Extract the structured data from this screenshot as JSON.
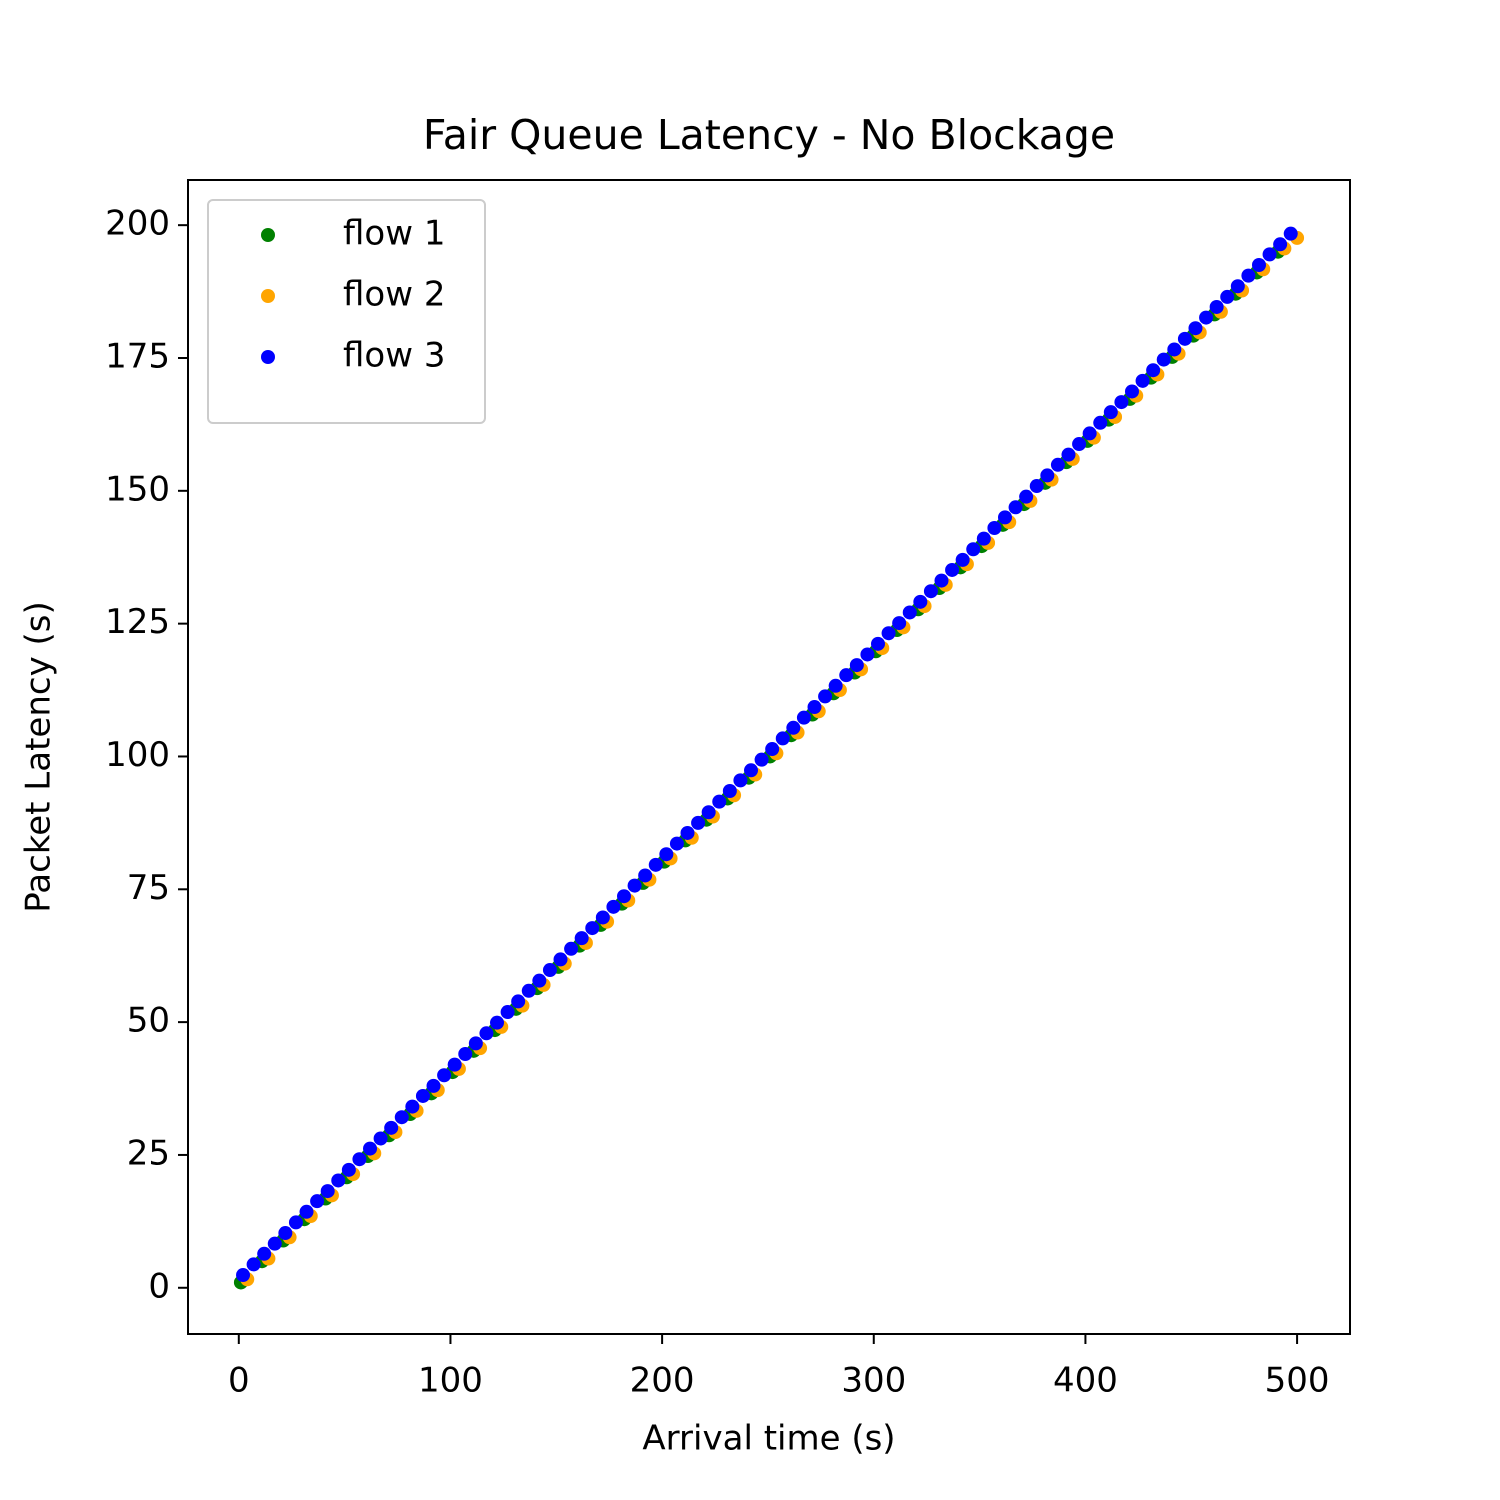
{
  "chart_data": {
    "type": "scatter",
    "title": "Fair Queue Latency - No Blockage",
    "xlabel": "Arrival time (s)",
    "ylabel": "Packet Latency (s)",
    "xlim": [
      -24,
      525
    ],
    "ylim": [
      -8.7,
      208.5
    ],
    "xticks": [
      0,
      100,
      200,
      300,
      400,
      500
    ],
    "yticks": [
      0,
      25,
      50,
      75,
      100,
      125,
      150,
      175,
      200
    ],
    "legend": "upper left",
    "series": [
      {
        "name": "flow 1",
        "color": "green",
        "x": [
          1,
          11,
          21,
          31,
          41,
          51,
          61,
          71,
          81,
          91,
          101,
          111,
          121,
          131,
          141,
          151,
          161,
          171,
          181,
          191,
          201,
          211,
          221,
          231,
          241,
          251,
          261,
          271,
          281,
          291,
          301,
          311,
          321,
          331,
          341,
          351,
          361,
          371,
          381,
          391,
          401,
          411,
          421,
          431,
          441,
          451,
          461,
          471,
          481,
          491
        ],
        "values": [
          1.0,
          5.0,
          8.9,
          12.9,
          16.8,
          20.8,
          24.8,
          28.7,
          32.7,
          36.6,
          40.6,
          44.6,
          48.5,
          52.5,
          56.4,
          60.4,
          64.4,
          68.3,
          72.3,
          76.2,
          80.2,
          84.2,
          88.1,
          92.1,
          96.0,
          100.0,
          104.0,
          107.9,
          111.9,
          115.8,
          119.8,
          123.8,
          127.7,
          131.7,
          135.6,
          139.6,
          143.6,
          147.5,
          151.5,
          155.4,
          159.4,
          163.4,
          167.3,
          171.3,
          175.2,
          179.2,
          183.2,
          187.1,
          191.1,
          195.0
        ]
      },
      {
        "name": "flow 2",
        "color": "orange",
        "x": [
          4,
          14,
          24,
          34,
          44,
          54,
          64,
          74,
          84,
          94,
          104,
          114,
          124,
          134,
          144,
          154,
          164,
          174,
          184,
          194,
          204,
          214,
          224,
          234,
          244,
          254,
          264,
          274,
          284,
          294,
          304,
          314,
          324,
          334,
          344,
          354,
          364,
          374,
          384,
          394,
          404,
          414,
          424,
          434,
          444,
          454,
          464,
          474,
          484,
          494,
          500
        ],
        "values": [
          1.6,
          5.5,
          9.5,
          13.5,
          17.4,
          21.4,
          25.3,
          29.3,
          33.3,
          37.2,
          41.2,
          45.1,
          49.1,
          53.1,
          57.0,
          61.0,
          64.9,
          68.9,
          72.9,
          76.8,
          80.8,
          84.7,
          88.7,
          92.7,
          96.6,
          100.6,
          104.5,
          108.5,
          112.5,
          116.4,
          120.4,
          124.3,
          128.3,
          132.3,
          136.2,
          140.2,
          144.1,
          148.1,
          152.1,
          156.0,
          160.0,
          163.9,
          167.9,
          171.9,
          175.8,
          179.8,
          183.7,
          187.7,
          191.7,
          195.6,
          197.6
        ]
      },
      {
        "name": "flow 3",
        "color": "blue",
        "x": [
          2,
          7,
          12,
          17,
          22,
          27,
          32,
          37,
          42,
          47,
          52,
          57,
          62,
          67,
          72,
          77,
          82,
          87,
          92,
          97,
          102,
          107,
          112,
          117,
          122,
          127,
          132,
          137,
          142,
          147,
          152,
          157,
          162,
          167,
          172,
          177,
          182,
          187,
          192,
          197,
          202,
          207,
          212,
          217,
          222,
          227,
          232,
          237,
          242,
          247,
          252,
          257,
          262,
          267,
          272,
          277,
          282,
          287,
          292,
          297,
          302,
          307,
          312,
          317,
          322,
          327,
          332,
          337,
          342,
          347,
          352,
          357,
          362,
          367,
          372,
          377,
          382,
          387,
          392,
          397,
          402,
          407,
          412,
          417,
          422,
          427,
          432,
          437,
          442,
          447,
          452,
          457,
          462,
          467,
          472,
          477,
          482,
          487,
          492,
          497
        ],
        "values": [
          2.4,
          4.4,
          6.4,
          8.3,
          10.3,
          12.3,
          14.3,
          16.3,
          18.2,
          20.2,
          22.2,
          24.2,
          26.2,
          28.1,
          30.1,
          32.1,
          34.1,
          36.1,
          38.0,
          40.0,
          42.0,
          44.0,
          46.0,
          47.9,
          49.9,
          51.9,
          53.9,
          55.9,
          57.8,
          59.8,
          61.8,
          63.8,
          65.8,
          67.7,
          69.7,
          71.7,
          73.7,
          75.7,
          77.6,
          79.6,
          81.6,
          83.6,
          85.6,
          87.5,
          89.5,
          91.5,
          93.5,
          95.5,
          97.4,
          99.4,
          101.4,
          103.4,
          105.4,
          107.3,
          109.3,
          111.3,
          113.3,
          115.3,
          117.2,
          119.2,
          121.2,
          123.2,
          125.1,
          127.1,
          129.1,
          131.1,
          133.1,
          135.1,
          137.0,
          139.0,
          141.0,
          143.0,
          145.0,
          146.9,
          148.9,
          150.9,
          152.9,
          154.9,
          156.8,
          158.8,
          160.8,
          162.8,
          164.8,
          166.7,
          168.7,
          170.7,
          172.7,
          174.7,
          176.6,
          178.6,
          180.6,
          182.6,
          184.6,
          186.5,
          188.5,
          190.5,
          192.5,
          194.5,
          196.4,
          198.4
        ]
      }
    ]
  }
}
